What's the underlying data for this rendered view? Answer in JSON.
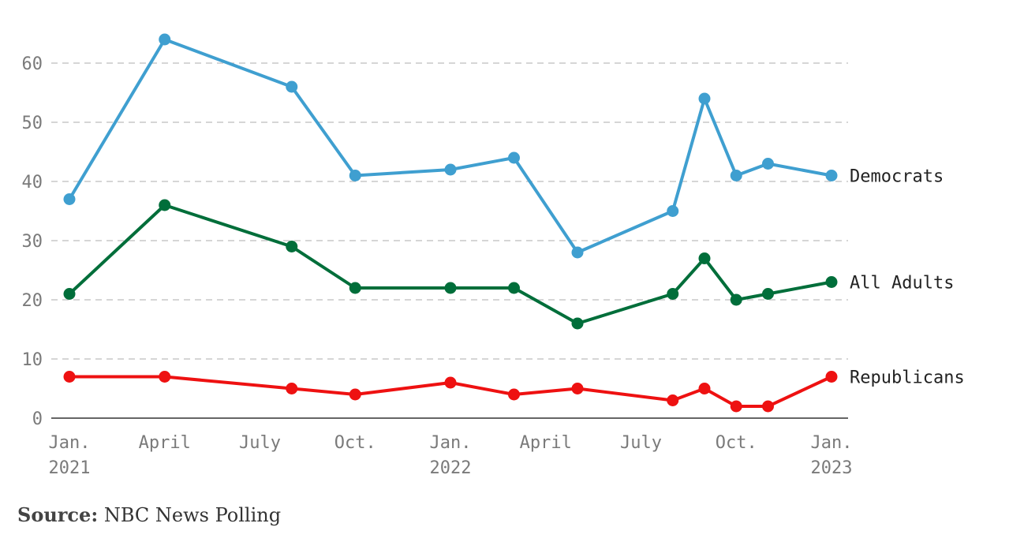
{
  "chart_data": {
    "type": "line",
    "x": [
      "2021-01",
      "2021-04",
      "2021-08",
      "2021-10",
      "2022-01",
      "2022-03",
      "2022-05",
      "2022-08",
      "2022-09",
      "2022-10",
      "2022-11",
      "2023-01"
    ],
    "series": [
      {
        "name": "Democrats",
        "values": [
          37,
          64,
          56,
          41,
          42,
          44,
          28,
          35,
          54,
          41,
          43,
          41
        ],
        "color": "#3f9fd0"
      },
      {
        "name": "All Adults",
        "values": [
          21,
          36,
          29,
          22,
          22,
          22,
          16,
          21,
          27,
          20,
          21,
          23
        ],
        "color": "#006e3a"
      },
      {
        "name": "Republicans",
        "values": [
          7,
          7,
          5,
          4,
          6,
          4,
          5,
          3,
          5,
          2,
          2,
          7
        ],
        "color": "#ee1111"
      }
    ],
    "ylim": [
      0,
      60
    ],
    "yticks": [
      0,
      10,
      20,
      30,
      40,
      50,
      60
    ],
    "xticks": [
      {
        "month": "2021-01",
        "line1": "Jan.",
        "line2": "2021"
      },
      {
        "month": "2021-04",
        "line1": "April",
        "line2": ""
      },
      {
        "month": "2021-07",
        "line1": "July",
        "line2": ""
      },
      {
        "month": "2021-10",
        "line1": "Oct.",
        "line2": ""
      },
      {
        "month": "2022-01",
        "line1": "Jan.",
        "line2": "2022"
      },
      {
        "month": "2022-04",
        "line1": "April",
        "line2": ""
      },
      {
        "month": "2022-07",
        "line1": "July",
        "line2": ""
      },
      {
        "month": "2022-10",
        "line1": "Oct.",
        "line2": ""
      },
      {
        "month": "2023-01",
        "line1": "Jan.",
        "line2": "2023"
      }
    ],
    "grid": true,
    "legend": "end-of-line labels"
  },
  "source": {
    "label": "Source:",
    "text": "NBC News Polling"
  }
}
